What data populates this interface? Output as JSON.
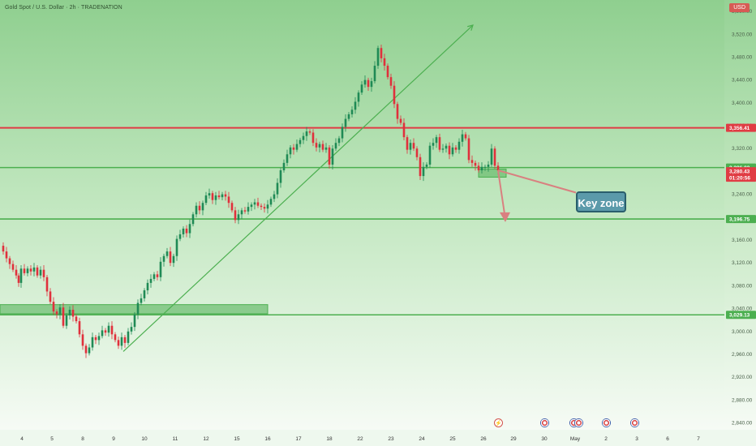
{
  "header": {
    "symbol_title": "Gold Spot / U.S. Dollar · 2h · TRADENATION",
    "currency": "USD"
  },
  "annotation": {
    "key_zone": "Key zone"
  },
  "colors": {
    "bull_candle": "#1f8a55",
    "bear_candle": "#e0303c",
    "resistance_line": "#e03c44",
    "support_line": "#4caf50",
    "trend_arrow": "#4caf50",
    "projection_arrow": "#d98080",
    "current_price_badge": "#e03c44"
  },
  "chart_data": {
    "type": "candlestick",
    "title": "",
    "y_ticks": [
      "3,560.00",
      "3,520.00",
      "3,480.00",
      "3,440.00",
      "3,400.00",
      "3,360.00",
      "3,320.00",
      "3,280.00",
      "3,240.00",
      "3,200.00",
      "3,160.00",
      "3,120.00",
      "3,080.00",
      "3,040.00",
      "3,000.00",
      "2,960.00",
      "2,920.00",
      "2,880.00",
      "2,840.00"
    ],
    "x_ticks": [
      "4",
      "5",
      "8",
      "9",
      "10",
      "11",
      "12",
      "15",
      "16",
      "17",
      "18",
      "22",
      "23",
      "24",
      "25",
      "26",
      "29",
      "30",
      "May",
      "2",
      "3",
      "6",
      "7"
    ],
    "ylim": [
      2828,
      3580
    ],
    "horizontal_levels": [
      {
        "price": 3356.41,
        "label": "3,356.41",
        "color": "red"
      },
      {
        "price": 3286.82,
        "label": "3,286.82",
        "color": "green"
      },
      {
        "price": 3196.75,
        "label": "3,196.75",
        "color": "green"
      },
      {
        "price": 3029.13,
        "label": "3,029.13",
        "color": "green"
      }
    ],
    "current_price": {
      "price": 3280.43,
      "label": "3,280.43",
      "countdown": "01:20:56"
    },
    "zones": [
      {
        "from_date": "4",
        "to_date": "16",
        "price_low": 3031,
        "price_high": 3047
      },
      {
        "from_date": "26",
        "to_date": "26",
        "price_low": 3270,
        "price_high": 3284
      }
    ],
    "trendline": {
      "from": {
        "date": "9",
        "price": 2965
      },
      "to": {
        "date": "29",
        "price": 3536
      }
    },
    "close_path": [
      [
        0,
        3150
      ],
      [
        4,
        3140
      ],
      [
        8,
        3128
      ],
      [
        12,
        3118
      ],
      [
        16,
        3108
      ],
      [
        20,
        3098
      ],
      [
        23,
        3085
      ],
      [
        26,
        3110
      ],
      [
        30,
        3102
      ],
      [
        34,
        3110
      ],
      [
        38,
        3105
      ],
      [
        42,
        3112
      ],
      [
        46,
        3098
      ],
      [
        50,
        3108
      ],
      [
        54,
        3095
      ],
      [
        58,
        3070
      ],
      [
        62,
        3052
      ],
      [
        66,
        3035
      ],
      [
        70,
        3030
      ],
      [
        74,
        3042
      ],
      [
        78,
        3010
      ],
      [
        82,
        3028
      ],
      [
        86,
        3038
      ],
      [
        90,
        3026
      ],
      [
        94,
        3018
      ],
      [
        98,
        2995
      ],
      [
        102,
        2975
      ],
      [
        106,
        2962
      ],
      [
        110,
        2972
      ],
      [
        114,
        2990
      ],
      [
        118,
        2985
      ],
      [
        122,
        2992
      ],
      [
        126,
        3002
      ],
      [
        130,
        2998
      ],
      [
        134,
        3010
      ],
      [
        138,
        2995
      ],
      [
        142,
        2985
      ],
      [
        146,
        2975
      ],
      [
        150,
        2990
      ],
      [
        154,
        2980
      ],
      [
        158,
        3000
      ],
      [
        162,
        3008
      ],
      [
        166,
        3030
      ],
      [
        170,
        3050
      ],
      [
        174,
        3058
      ],
      [
        178,
        3072
      ],
      [
        182,
        3085
      ],
      [
        186,
        3092
      ],
      [
        190,
        3100
      ],
      [
        194,
        3095
      ],
      [
        198,
        3122
      ],
      [
        202,
        3132
      ],
      [
        206,
        3140
      ],
      [
        210,
        3120
      ],
      [
        214,
        3132
      ],
      [
        218,
        3162
      ],
      [
        222,
        3170
      ],
      [
        226,
        3180
      ],
      [
        230,
        3172
      ],
      [
        234,
        3188
      ],
      [
        238,
        3205
      ],
      [
        242,
        3220
      ],
      [
        246,
        3212
      ],
      [
        250,
        3225
      ],
      [
        254,
        3238
      ],
      [
        258,
        3242
      ],
      [
        262,
        3230
      ],
      [
        266,
        3238
      ],
      [
        270,
        3235
      ],
      [
        274,
        3240
      ],
      [
        278,
        3236
      ],
      [
        282,
        3225
      ],
      [
        286,
        3212
      ],
      [
        290,
        3195
      ],
      [
        294,
        3205
      ],
      [
        298,
        3212
      ],
      [
        302,
        3210
      ],
      [
        306,
        3218
      ],
      [
        310,
        3222
      ],
      [
        314,
        3226
      ],
      [
        318,
        3220
      ],
      [
        322,
        3218
      ],
      [
        326,
        3215
      ],
      [
        330,
        3222
      ],
      [
        334,
        3232
      ],
      [
        338,
        3240
      ],
      [
        342,
        3260
      ],
      [
        346,
        3282
      ],
      [
        350,
        3295
      ],
      [
        354,
        3310
      ],
      [
        358,
        3322
      ],
      [
        362,
        3318
      ],
      [
        366,
        3328
      ],
      [
        370,
        3335
      ],
      [
        374,
        3342
      ],
      [
        378,
        3350
      ],
      [
        382,
        3348
      ],
      [
        386,
        3330
      ],
      [
        390,
        3322
      ],
      [
        394,
        3328
      ],
      [
        398,
        3318
      ],
      [
        402,
        3322
      ],
      [
        406,
        3292
      ],
      [
        410,
        3320
      ],
      [
        414,
        3330
      ],
      [
        418,
        3338
      ],
      [
        422,
        3358
      ],
      [
        426,
        3372
      ],
      [
        430,
        3380
      ],
      [
        434,
        3388
      ],
      [
        438,
        3402
      ],
      [
        442,
        3418
      ],
      [
        446,
        3432
      ],
      [
        450,
        3440
      ],
      [
        454,
        3428
      ],
      [
        458,
        3438
      ],
      [
        462,
        3465
      ],
      [
        466,
        3496
      ],
      [
        470,
        3478
      ],
      [
        474,
        3465
      ],
      [
        478,
        3445
      ],
      [
        482,
        3430
      ],
      [
        486,
        3398
      ],
      [
        490,
        3372
      ],
      [
        494,
        3365
      ],
      [
        498,
        3340
      ],
      [
        502,
        3318
      ],
      [
        506,
        3330
      ],
      [
        510,
        3320
      ],
      [
        514,
        3305
      ],
      [
        518,
        3272
      ],
      [
        522,
        3288
      ],
      [
        526,
        3292
      ],
      [
        530,
        3325
      ],
      [
        534,
        3330
      ],
      [
        538,
        3340
      ],
      [
        542,
        3318
      ],
      [
        546,
        3320
      ],
      [
        550,
        3325
      ],
      [
        554,
        3310
      ],
      [
        558,
        3322
      ],
      [
        562,
        3318
      ],
      [
        566,
        3332
      ],
      [
        570,
        3345
      ],
      [
        574,
        3338
      ],
      [
        578,
        3300
      ],
      [
        582,
        3295
      ],
      [
        586,
        3290
      ],
      [
        590,
        3282
      ],
      [
        594,
        3288
      ],
      [
        598,
        3288
      ],
      [
        602,
        3292
      ],
      [
        606,
        3320
      ],
      [
        610,
        3290
      ],
      [
        614,
        3282
      ]
    ]
  }
}
